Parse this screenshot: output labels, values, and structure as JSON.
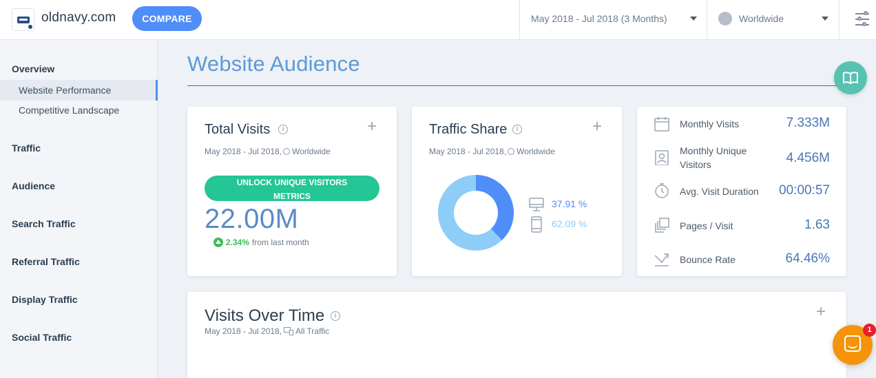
{
  "header": {
    "domain": "oldnavy.com",
    "compare_label": "COMPARE",
    "date_range": "May 2018 - Jul 2018 (3 Months)",
    "geo": "Worldwide"
  },
  "sidebar": {
    "overview": "Overview",
    "overview_items": [
      "Website Performance",
      "Competitive Landscape"
    ],
    "sections": [
      "Traffic",
      "Audience",
      "Search Traffic",
      "Referral Traffic",
      "Display Traffic",
      "Social Traffic"
    ]
  },
  "main": {
    "title": "Website Audience"
  },
  "total_visits": {
    "title": "Total Visits",
    "subtitle_date": "May 2018 - Jul 2018,",
    "subtitle_geo": "Worldwide",
    "unlock_label_1": "UNLOCK UNIQUE VISITORS",
    "unlock_label_2": "METRICS",
    "value": "22.00M",
    "growth_pct": "2.34%",
    "growth_label": "from last month"
  },
  "traffic_share": {
    "title": "Traffic Share",
    "subtitle_date": "May 2018 - Jul 2018,",
    "subtitle_geo": "Worldwide",
    "desktop_label": "37.91 %",
    "mobile_label": "62.09 %",
    "desktop_share": 37.91,
    "mobile_share": 62.09,
    "desktop_color": "#4f8df9",
    "mobile_color": "#8ecdf8"
  },
  "metrics": [
    {
      "icon": "calendar-icon",
      "label": "Monthly Visits",
      "value": "7.333M"
    },
    {
      "icon": "person-card-icon",
      "label": "Monthly Unique Visitors",
      "value": "4.456M"
    },
    {
      "icon": "stopwatch-icon",
      "label": "Avg. Visit Duration",
      "value": "00:00:57"
    },
    {
      "icon": "pages-icon",
      "label": "Pages / Visit",
      "value": "1.63"
    },
    {
      "icon": "bounce-icon",
      "label": "Bounce Rate",
      "value": "64.46%"
    }
  ],
  "visits_over_time": {
    "title": "Visits Over Time",
    "subtitle_date": "May 2018 - Jul 2018,",
    "subtitle_filter": "All Traffic"
  },
  "chat": {
    "badge": "1"
  },
  "colors": {
    "accent": "#4f8df9",
    "unlock_green": "#23c694",
    "title_blue": "#5b9ad8",
    "chat_orange": "#f5940b"
  }
}
